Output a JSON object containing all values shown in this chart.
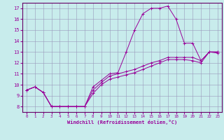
{
  "xlabel": "Windchill (Refroidissement éolien,°C)",
  "bg_color": "#c8ecec",
  "line_color": "#990099",
  "grid_color": "#9999bb",
  "spine_color": "#660066",
  "xlim": [
    -0.5,
    23.5
  ],
  "ylim": [
    7.5,
    17.5
  ],
  "xticks": [
    0,
    1,
    2,
    3,
    4,
    5,
    6,
    7,
    8,
    9,
    10,
    11,
    12,
    13,
    14,
    15,
    16,
    17,
    18,
    19,
    20,
    21,
    22,
    23
  ],
  "yticks": [
    8,
    9,
    10,
    11,
    12,
    13,
    14,
    15,
    16,
    17
  ],
  "series": [
    {
      "x": [
        0,
        1,
        2,
        3,
        4,
        5,
        6,
        7,
        8,
        9,
        10,
        11,
        12,
        13,
        14,
        15,
        16,
        17,
        18,
        19,
        20,
        21,
        22,
        23
      ],
      "y": [
        9.5,
        9.8,
        9.3,
        8.0,
        8.0,
        8.0,
        8.0,
        8.0,
        9.8,
        10.4,
        11.0,
        11.1,
        13.0,
        15.0,
        16.5,
        17.0,
        17.0,
        17.2,
        16.0,
        13.8,
        13.8,
        12.2,
        13.0,
        13.0
      ]
    },
    {
      "x": [
        0,
        1,
        2,
        3,
        4,
        5,
        6,
        7,
        8,
        9,
        10,
        11,
        12,
        13,
        14,
        15,
        16,
        17,
        18,
        19,
        20,
        21,
        22,
        23
      ],
      "y": [
        9.5,
        9.8,
        9.3,
        8.0,
        8.0,
        8.0,
        8.0,
        8.0,
        9.5,
        10.2,
        10.8,
        11.0,
        11.2,
        11.4,
        11.7,
        12.0,
        12.2,
        12.5,
        12.5,
        12.5,
        12.5,
        12.2,
        13.0,
        13.0
      ]
    },
    {
      "x": [
        0,
        1,
        2,
        3,
        4,
        5,
        6,
        7,
        8,
        9,
        10,
        11,
        12,
        13,
        14,
        15,
        16,
        17,
        18,
        19,
        20,
        21,
        22,
        23
      ],
      "y": [
        9.5,
        9.8,
        9.3,
        8.0,
        8.0,
        8.0,
        8.0,
        8.0,
        9.2,
        10.0,
        10.5,
        10.7,
        10.9,
        11.1,
        11.4,
        11.7,
        12.0,
        12.3,
        12.3,
        12.3,
        12.2,
        12.0,
        13.0,
        12.9
      ]
    }
  ]
}
